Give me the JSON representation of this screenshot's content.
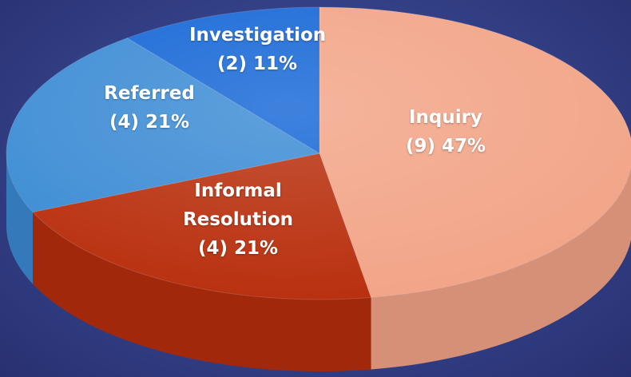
{
  "chart_data": {
    "type": "pie",
    "categories": [
      "Inquiry",
      "Informal Resolution",
      "Referred",
      "Investigation"
    ],
    "values": [
      9,
      4,
      4,
      2
    ],
    "value_labels": [
      "(9) 47%",
      "(4) 21%",
      "(4) 21%",
      "(2) 11%"
    ],
    "colors": [
      "#f2a487",
      "#b82e0c",
      "#3b8bd4",
      "#1566d6"
    ]
  }
}
